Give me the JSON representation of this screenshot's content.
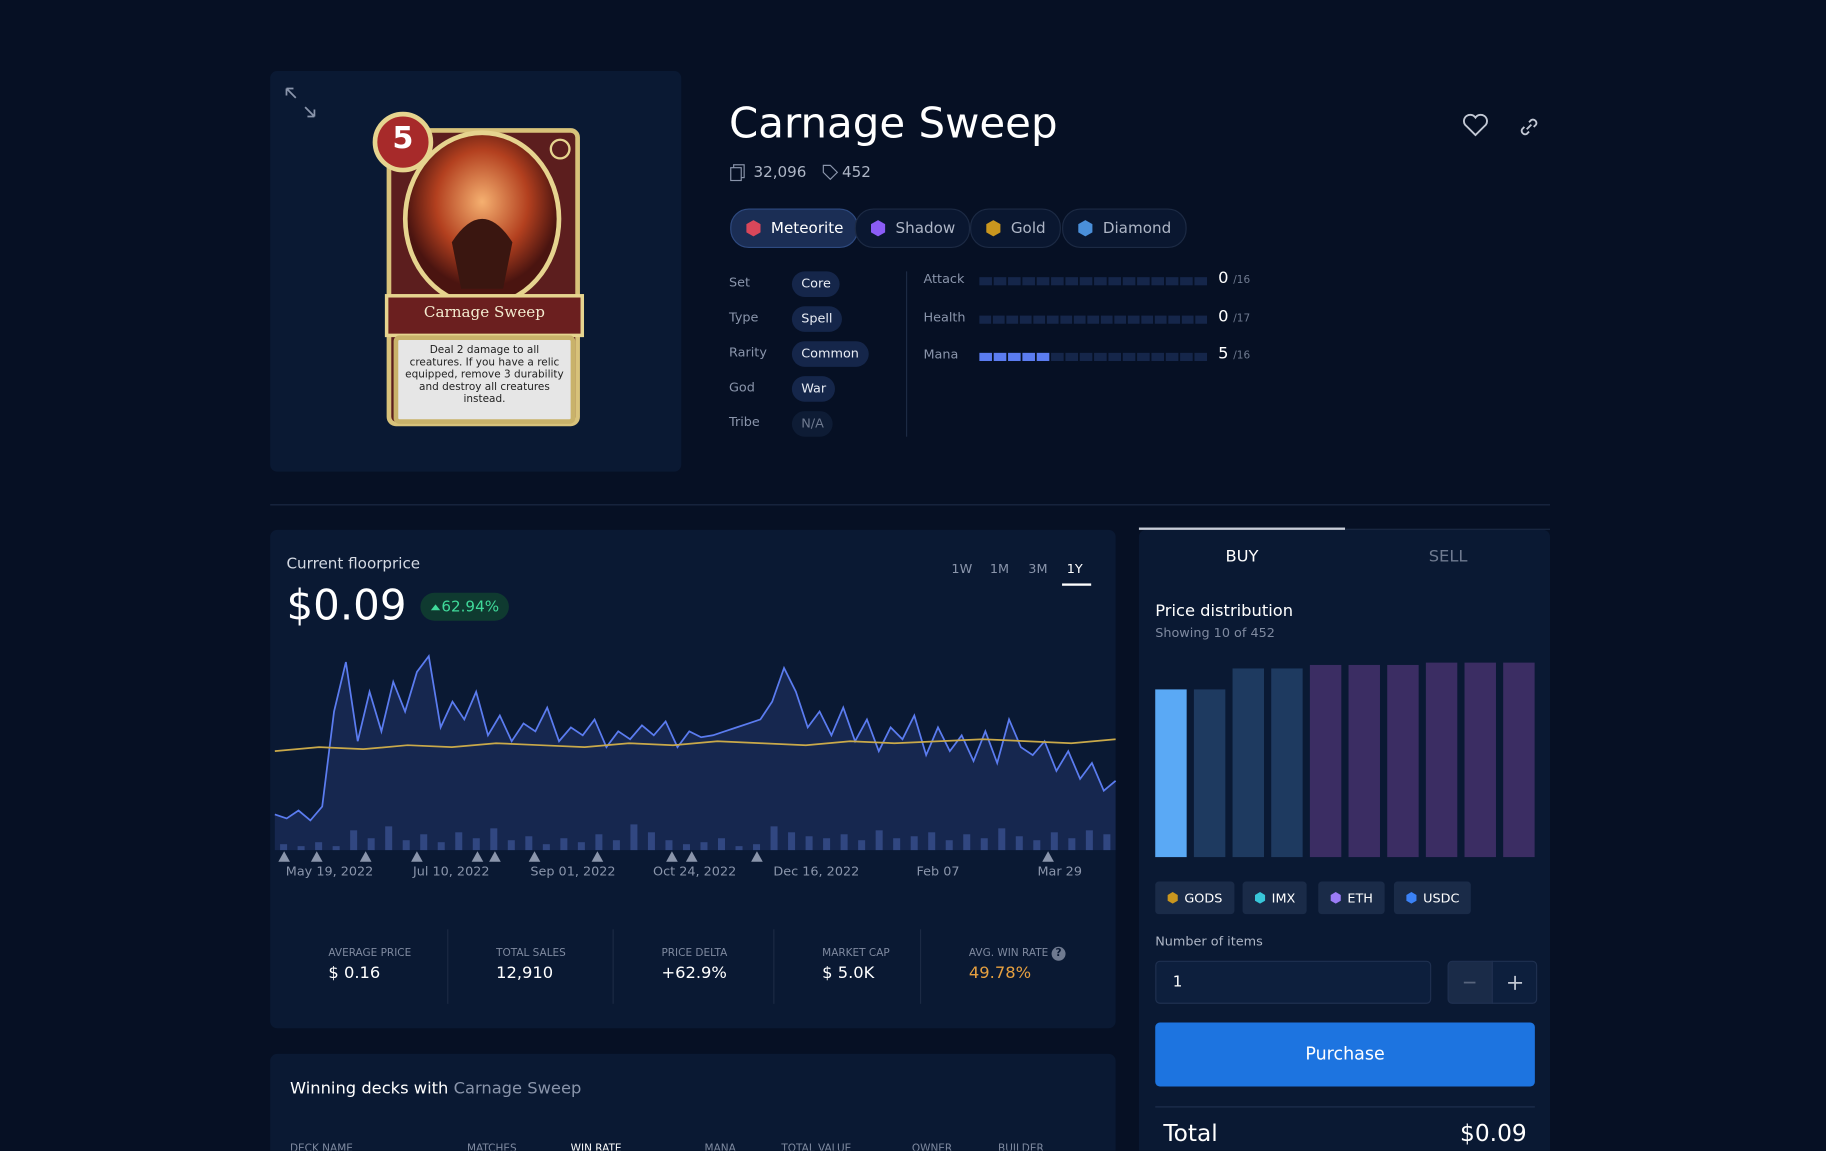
{
  "card": {
    "title": "Carnage Sweep",
    "mana": 5,
    "card_text": "Deal 2 damage to all creatures. If you have a relic equipped, remove 3 durability and destroy all creatures instead.",
    "copies": "32,096",
    "listings": "452"
  },
  "qualities": [
    {
      "name": "Meteorite",
      "color": "#d9475a",
      "active": true
    },
    {
      "name": "Shadow",
      "color": "#8b5cf6",
      "active": false
    },
    {
      "name": "Gold",
      "color": "#c9961e",
      "active": false
    },
    {
      "name": "Diamond",
      "color": "#4a8fd9",
      "active": false
    }
  ],
  "properties": [
    {
      "label": "Set",
      "value": "Core"
    },
    {
      "label": "Type",
      "value": "Spell"
    },
    {
      "label": "Rarity",
      "value": "Common"
    },
    {
      "label": "God",
      "value": "War"
    },
    {
      "label": "Tribe",
      "value": "N/A"
    }
  ],
  "stats": [
    {
      "label": "Attack",
      "value": 0,
      "max": 16,
      "max_label": "/16"
    },
    {
      "label": "Health",
      "value": 0,
      "max": 17,
      "max_label": "/17"
    },
    {
      "label": "Mana",
      "value": 5,
      "max": 16,
      "max_label": "/16"
    }
  ],
  "floorprice": {
    "label": "Current floorprice",
    "price": "$0.09",
    "change": "62.94%",
    "ranges": [
      "1W",
      "1M",
      "3M",
      "1Y"
    ],
    "active_range": 3
  },
  "chart_data": {
    "type": "line",
    "x_labels": [
      "May 19, 2022",
      "Jul 10, 2022",
      "Sep 01, 2022",
      "Oct 24, 2022",
      "Dec 16, 2022",
      "Feb 07",
      "Mar 29"
    ],
    "ylim": [
      0,
      100
    ],
    "series": [
      {
        "color": "#5b7cf0",
        "values": [
          18,
          16,
          20,
          15,
          22,
          70,
          95,
          55,
          80,
          60,
          85,
          70,
          90,
          98,
          62,
          75,
          66,
          80,
          58,
          68,
          55,
          64,
          60,
          72,
          55,
          62,
          58,
          66,
          52,
          60,
          56,
          63,
          58,
          65,
          52,
          60,
          57,
          58,
          60,
          62,
          64,
          66,
          75,
          92,
          80,
          62,
          70,
          58,
          72,
          55,
          66,
          50,
          62,
          56,
          68,
          48,
          62,
          50,
          58,
          45,
          60,
          44,
          66,
          52,
          48,
          55,
          40,
          50,
          36,
          44,
          30,
          35
        ]
      },
      {
        "color": "#c9a94a",
        "values": [
          50,
          52,
          51,
          53,
          52,
          54,
          53,
          52,
          54,
          53,
          55,
          54,
          53,
          55,
          54,
          55,
          56,
          55,
          54,
          56
        ]
      }
    ],
    "volume": {
      "color": "#2a3f6e",
      "values": [
        3,
        2,
        4,
        2,
        10,
        6,
        12,
        5,
        8,
        4,
        9,
        6,
        11,
        5,
        7,
        3,
        6,
        4,
        8,
        5,
        13,
        9,
        5,
        3,
        4,
        6,
        2,
        3,
        12,
        9,
        7,
        6,
        8,
        5,
        10,
        6,
        7,
        9,
        5,
        8,
        6,
        11,
        7,
        5,
        9,
        6,
        10,
        8
      ]
    }
  },
  "metrics": [
    {
      "label": "AVERAGE PRICE",
      "value": "$ 0.16"
    },
    {
      "label": "TOTAL SALES",
      "value": "12,910"
    },
    {
      "label": "PRICE DELTA",
      "value": "+62.9%"
    },
    {
      "label": "MARKET CAP",
      "value": "$ 5.0K"
    },
    {
      "label": "AVG. WIN RATE",
      "value": "49.78%"
    }
  ],
  "trade": {
    "tabs": [
      "BUY",
      "SELL"
    ],
    "distribution_title": "Price distribution",
    "distribution_subtitle": "Showing 10 of 452",
    "distribution": {
      "ylim": [
        0,
        170
      ],
      "values": [
        144,
        144,
        162,
        162,
        165,
        165,
        165,
        167,
        167,
        167
      ],
      "colors": [
        "#5aa9f5",
        "#1e3a60",
        "#1e3a60",
        "#1e3a60",
        "#3b2d63",
        "#3b2d63",
        "#3b2d63",
        "#3b2d63",
        "#3b2d63",
        "#3b2d63"
      ]
    },
    "currencies": [
      {
        "name": "GODS",
        "color": "#c9961e"
      },
      {
        "name": "IMX",
        "color": "#38c6d9"
      },
      {
        "name": "ETH",
        "color": "#9b7cf6"
      },
      {
        "name": "USDC",
        "color": "#3b82f6"
      }
    ],
    "items_label": "Number of items",
    "items_value": "1",
    "button": "Purchase",
    "total_label": "Total",
    "total": "$0.09"
  },
  "decks": {
    "title_prefix": "Winning decks with",
    "title_card": "Carnage Sweep",
    "columns": [
      "DECK NAME",
      "MATCHES",
      "WIN RATE",
      "MANA",
      "TOTAL VALUE",
      "OWNER",
      "BUILDER"
    ]
  }
}
